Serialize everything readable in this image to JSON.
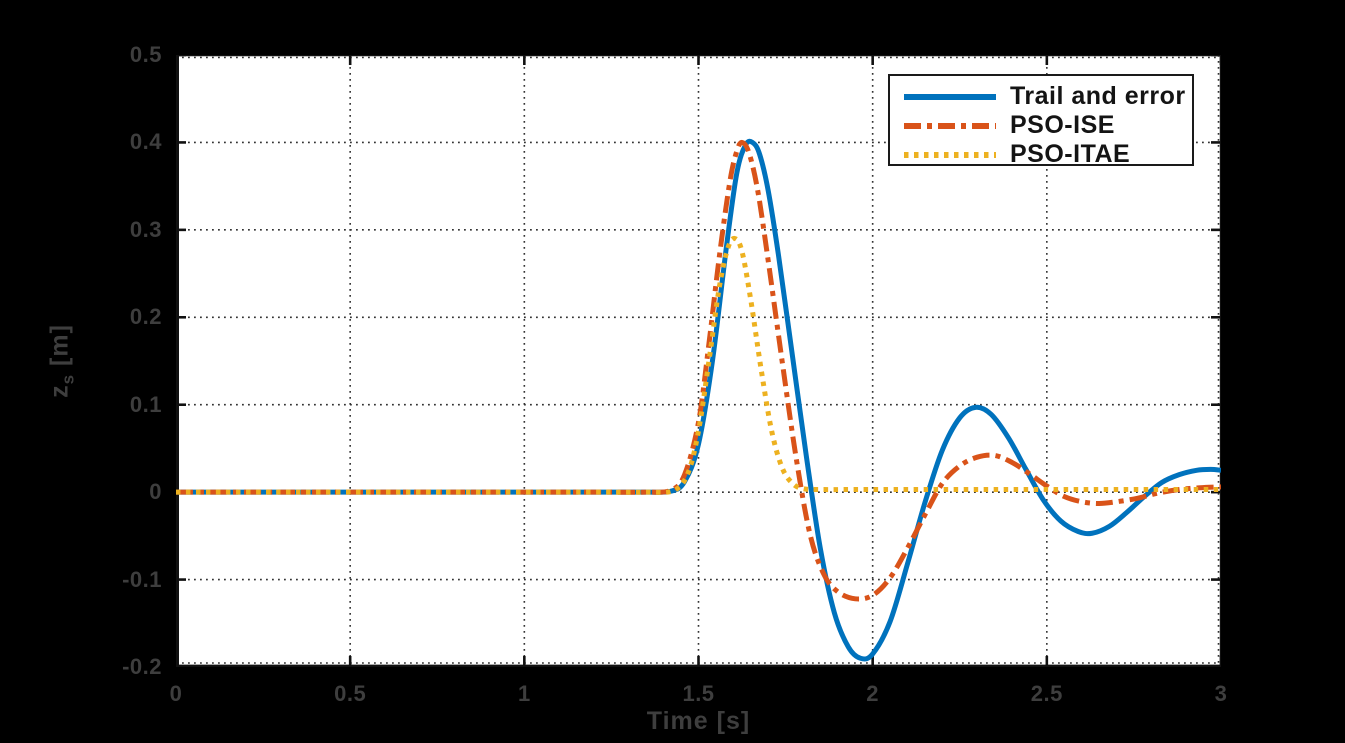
{
  "figure": {
    "background": "#000000",
    "plot_background": "#ffffff",
    "grid_color": "#333333",
    "axis_color": "#111111",
    "tick_label_color": "#3e3e3e"
  },
  "chart_data": {
    "type": "line",
    "title": "",
    "xlabel": "Time [s]",
    "ylabel": {
      "main": "z",
      "sub": "s",
      "unit": " [m]"
    },
    "xlim": [
      0,
      3
    ],
    "ylim": [
      -0.2,
      0.5
    ],
    "x_ticks": [
      0,
      0.5,
      1,
      1.5,
      2,
      2.5,
      3
    ],
    "x_tick_labels": [
      "0",
      "0.5",
      "1",
      "1.5",
      "2",
      "2.5",
      "3"
    ],
    "y_ticks": [
      -0.2,
      -0.1,
      0,
      0.1,
      0.2,
      0.3,
      0.4,
      0.5
    ],
    "y_tick_labels": [
      "-0.2",
      "-0.1",
      "0",
      "0.1",
      "0.2",
      "0.3",
      "0.4",
      "0.5"
    ],
    "grid": true,
    "grid_style": "dotted",
    "legend": {
      "position": "top-right",
      "entries": [
        {
          "label": "Trail and error",
          "color": "#0072BD",
          "style": "solid"
        },
        {
          "label": "PSO-ISE",
          "color": "#D95319",
          "style": "dash-dot"
        },
        {
          "label": "PSO-ITAE",
          "color": "#EDB120",
          "style": "dotted"
        }
      ]
    },
    "series": [
      {
        "name": "Trail and error",
        "color": "#0072BD",
        "line_style": "solid",
        "line_width": 5,
        "points": [
          [
            0,
            0
          ],
          [
            0.3,
            0
          ],
          [
            0.6,
            0
          ],
          [
            0.9,
            0
          ],
          [
            1.2,
            0
          ],
          [
            1.35,
            0
          ],
          [
            1.42,
            0.001
          ],
          [
            1.46,
            0.012
          ],
          [
            1.5,
            0.055
          ],
          [
            1.54,
            0.15
          ],
          [
            1.58,
            0.28
          ],
          [
            1.61,
            0.365
          ],
          [
            1.635,
            0.397
          ],
          [
            1.655,
            0.4
          ],
          [
            1.675,
            0.387
          ],
          [
            1.7,
            0.345
          ],
          [
            1.73,
            0.27
          ],
          [
            1.77,
            0.155
          ],
          [
            1.81,
            0.04
          ],
          [
            1.85,
            -0.065
          ],
          [
            1.89,
            -0.138
          ],
          [
            1.93,
            -0.177
          ],
          [
            1.965,
            -0.19
          ],
          [
            2.0,
            -0.185
          ],
          [
            2.05,
            -0.148
          ],
          [
            2.1,
            -0.082
          ],
          [
            2.15,
            -0.012
          ],
          [
            2.2,
            0.048
          ],
          [
            2.25,
            0.085
          ],
          [
            2.295,
            0.097
          ],
          [
            2.34,
            0.089
          ],
          [
            2.39,
            0.062
          ],
          [
            2.44,
            0.026
          ],
          [
            2.49,
            -0.009
          ],
          [
            2.54,
            -0.033
          ],
          [
            2.59,
            -0.045
          ],
          [
            2.63,
            -0.047
          ],
          [
            2.68,
            -0.039
          ],
          [
            2.73,
            -0.023
          ],
          [
            2.78,
            -0.005
          ],
          [
            2.83,
            0.011
          ],
          [
            2.88,
            0.02
          ],
          [
            2.93,
            0.025
          ],
          [
            2.97,
            0.026
          ],
          [
            3.0,
            0.025
          ]
        ]
      },
      {
        "name": "PSO-ISE",
        "color": "#D95319",
        "line_style": "dash-dot",
        "line_width": 5,
        "points": [
          [
            0,
            0
          ],
          [
            0.3,
            0
          ],
          [
            0.6,
            0
          ],
          [
            0.9,
            0
          ],
          [
            1.2,
            0
          ],
          [
            1.35,
            0
          ],
          [
            1.42,
            0.002
          ],
          [
            1.46,
            0.02
          ],
          [
            1.5,
            0.08
          ],
          [
            1.53,
            0.17
          ],
          [
            1.56,
            0.27
          ],
          [
            1.59,
            0.355
          ],
          [
            1.61,
            0.39
          ],
          [
            1.625,
            0.4
          ],
          [
            1.645,
            0.388
          ],
          [
            1.67,
            0.345
          ],
          [
            1.7,
            0.265
          ],
          [
            1.74,
            0.15
          ],
          [
            1.78,
            0.04
          ],
          [
            1.82,
            -0.048
          ],
          [
            1.86,
            -0.094
          ],
          [
            1.9,
            -0.114
          ],
          [
            1.95,
            -0.122
          ],
          [
            2.0,
            -0.118
          ],
          [
            2.05,
            -0.098
          ],
          [
            2.1,
            -0.064
          ],
          [
            2.15,
            -0.026
          ],
          [
            2.2,
            0.01
          ],
          [
            2.25,
            0.03
          ],
          [
            2.3,
            0.04
          ],
          [
            2.35,
            0.042
          ],
          [
            2.4,
            0.034
          ],
          [
            2.45,
            0.021
          ],
          [
            2.5,
            0.007
          ],
          [
            2.55,
            -0.005
          ],
          [
            2.6,
            -0.011
          ],
          [
            2.65,
            -0.013
          ],
          [
            2.7,
            -0.011
          ],
          [
            2.76,
            -0.007
          ],
          [
            2.82,
            -0.001
          ],
          [
            2.88,
            0.003
          ],
          [
            2.94,
            0.005
          ],
          [
            3.0,
            0.006
          ]
        ]
      },
      {
        "name": "PSO-ITAE",
        "color": "#EDB120",
        "line_style": "dotted",
        "line_width": 5,
        "points": [
          [
            0,
            0
          ],
          [
            0.3,
            0
          ],
          [
            0.6,
            0
          ],
          [
            0.9,
            0
          ],
          [
            1.2,
            0
          ],
          [
            1.35,
            0
          ],
          [
            1.43,
            0.002
          ],
          [
            1.47,
            0.022
          ],
          [
            1.5,
            0.07
          ],
          [
            1.53,
            0.15
          ],
          [
            1.56,
            0.235
          ],
          [
            1.585,
            0.28
          ],
          [
            1.605,
            0.29
          ],
          [
            1.625,
            0.275
          ],
          [
            1.65,
            0.22
          ],
          [
            1.68,
            0.14
          ],
          [
            1.71,
            0.07
          ],
          [
            1.74,
            0.028
          ],
          [
            1.77,
            0.01
          ],
          [
            1.8,
            0.004
          ],
          [
            1.85,
            0.003
          ],
          [
            1.95,
            0.003
          ],
          [
            2.1,
            0.003
          ],
          [
            2.3,
            0.003
          ],
          [
            2.5,
            0.003
          ],
          [
            2.7,
            0.003
          ],
          [
            2.85,
            0.003
          ],
          [
            3.0,
            0.003
          ]
        ]
      }
    ]
  }
}
